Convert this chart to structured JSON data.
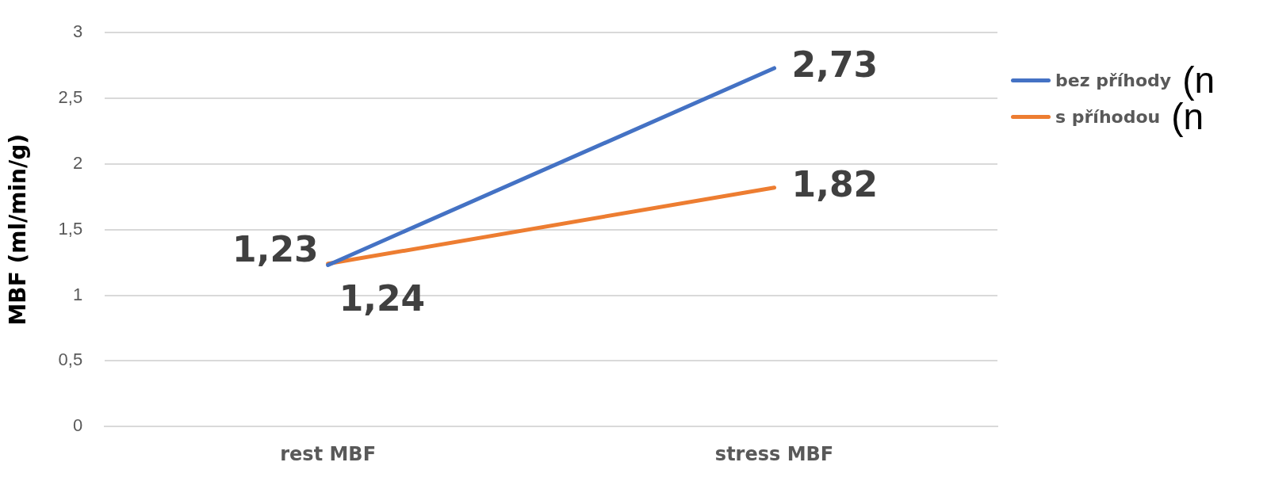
{
  "chart_data": {
    "type": "line",
    "ylabel": "MBF (ml/min/g)",
    "categories": [
      "rest MBF",
      "stress MBF"
    ],
    "series": [
      {
        "name": "bez příhody",
        "color": "#4472c4",
        "values": [
          1.23,
          2.73
        ],
        "value_labels": [
          "1,23",
          "2,73"
        ]
      },
      {
        "name": "s příhodou",
        "color": "#ed7d31",
        "values": [
          1.24,
          1.82
        ],
        "value_labels": [
          "1,24",
          "1,82"
        ]
      }
    ],
    "ylim": [
      0,
      3
    ],
    "yticks": [
      0,
      {
        "value": 0.5,
        "label": "0,5"
      },
      1,
      {
        "value": 1.5,
        "label": "1,5"
      },
      2,
      {
        "value": 2.5,
        "label": "2,5"
      },
      3
    ],
    "grid": "y",
    "legend": "right",
    "marker": "none",
    "line_style": "solid",
    "annotations": [
      "(n",
      "(n"
    ]
  }
}
